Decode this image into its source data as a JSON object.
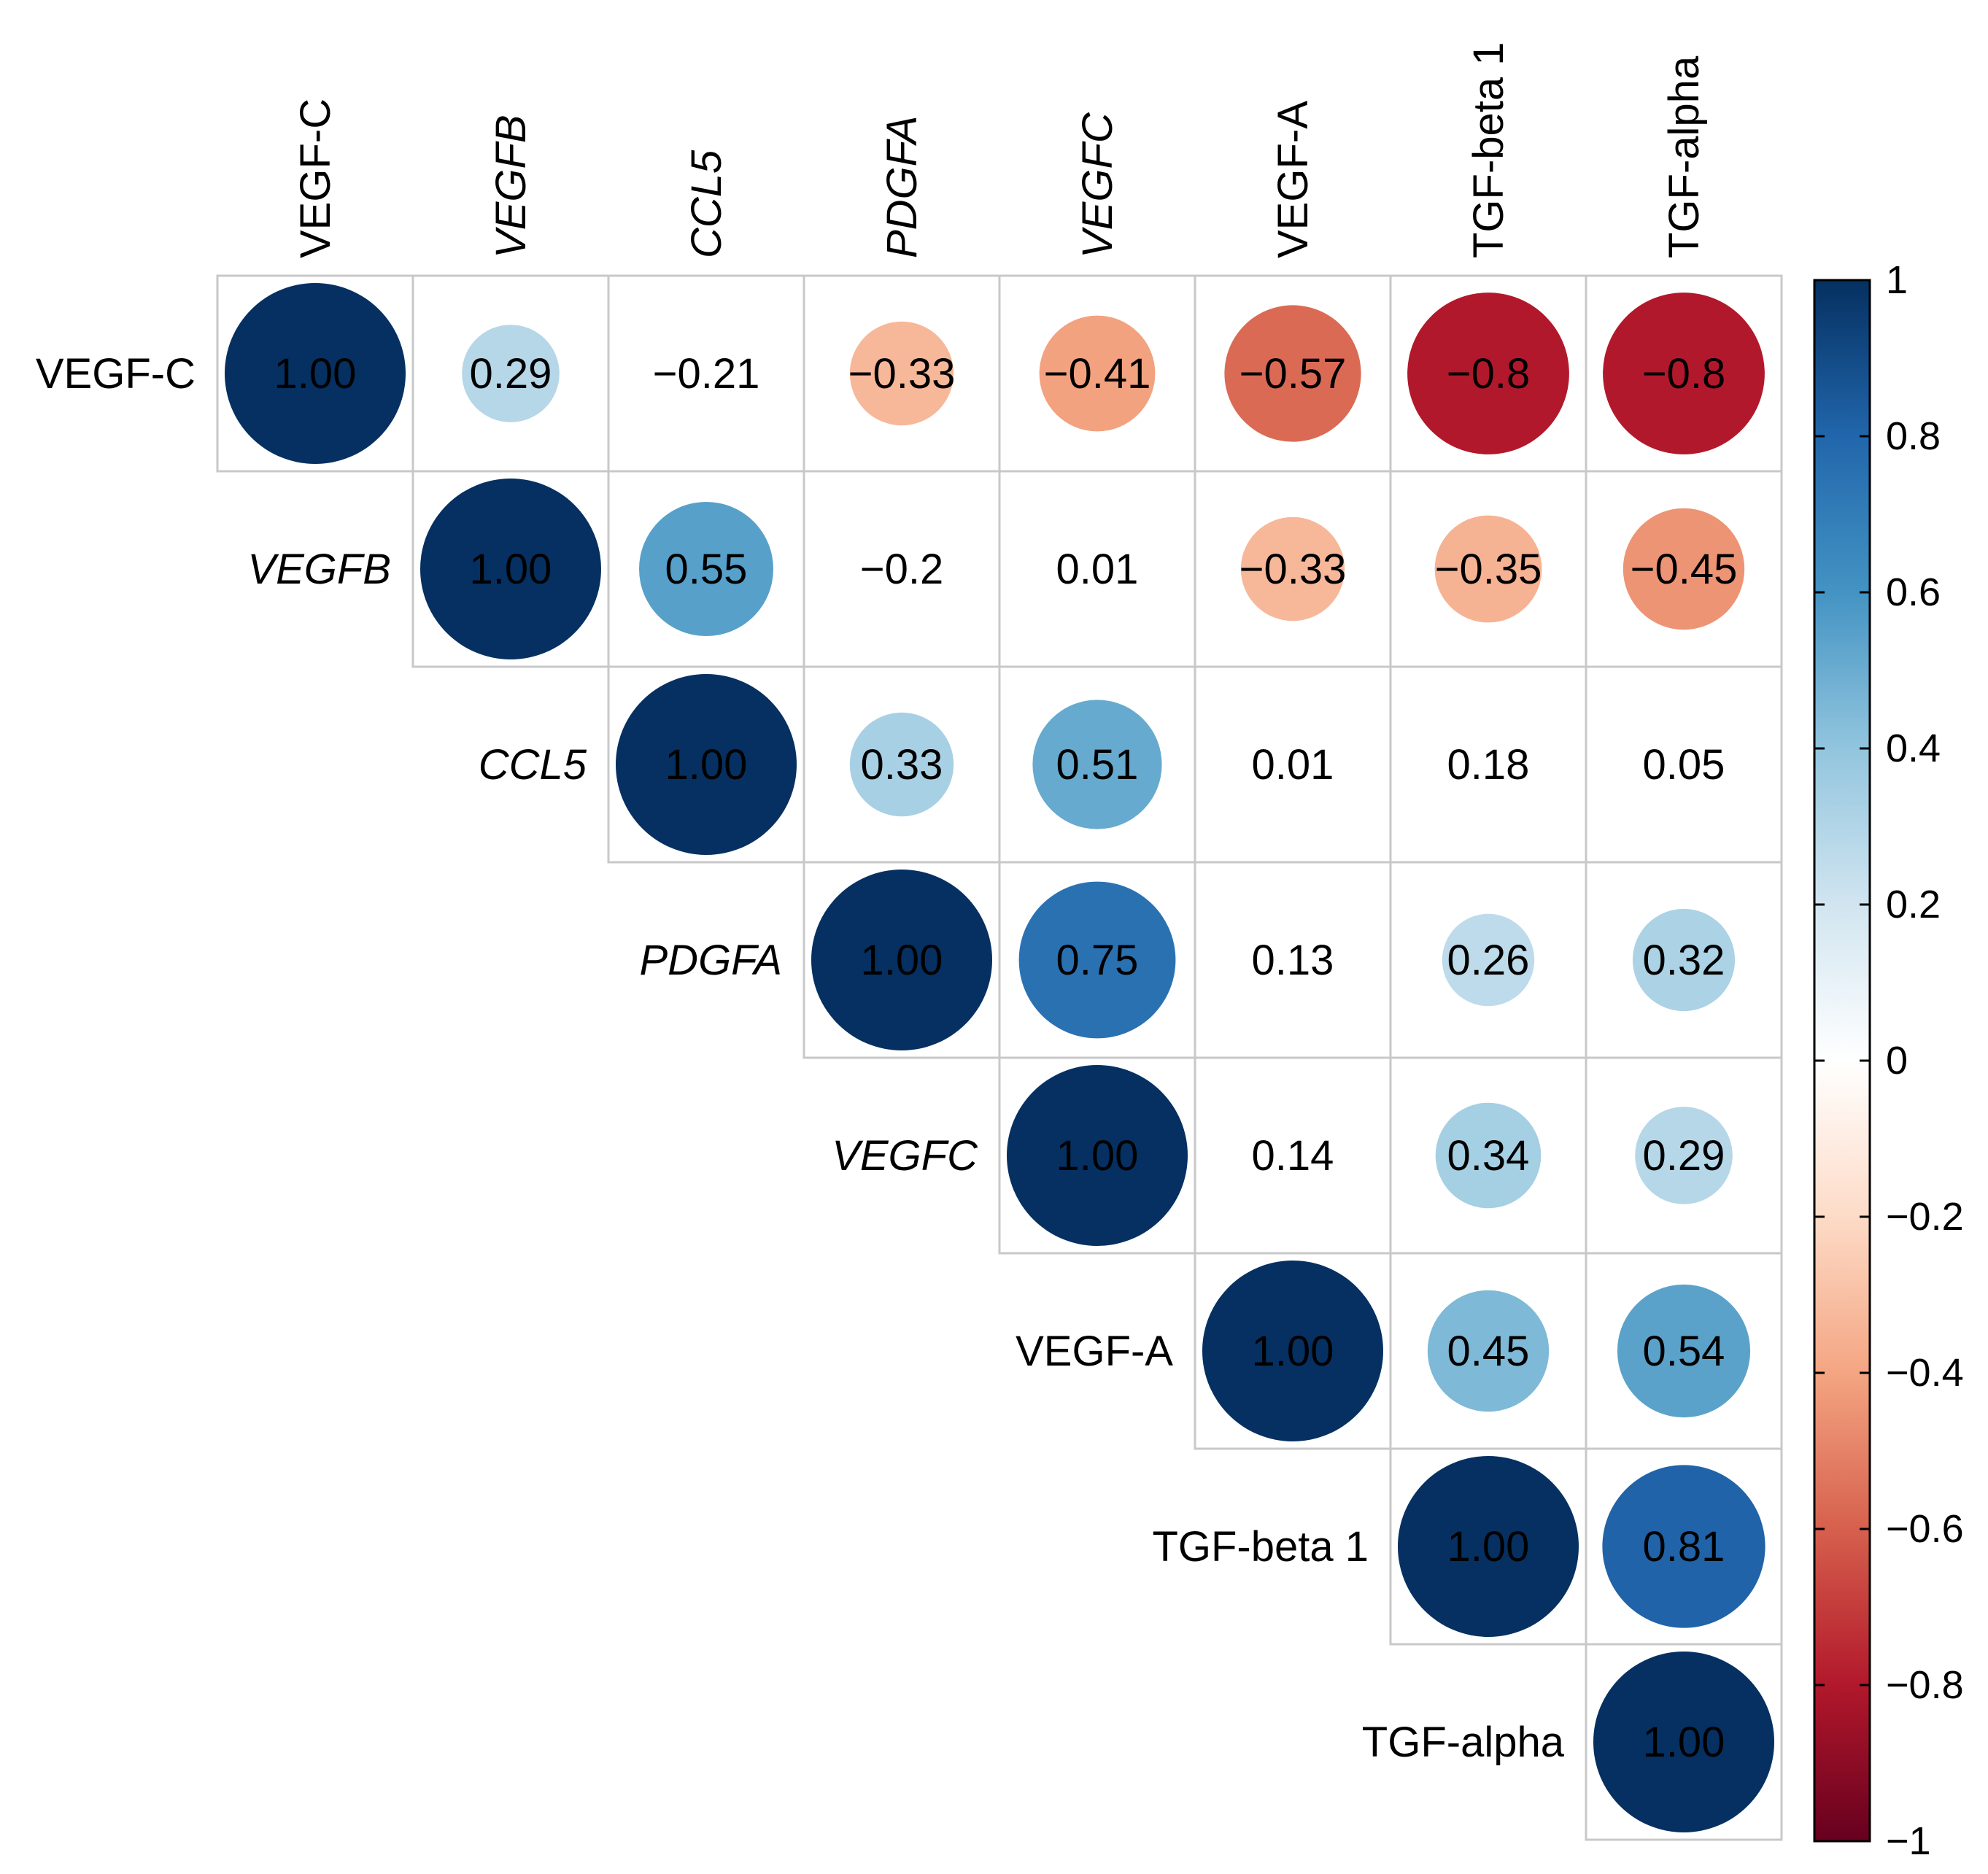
{
  "chart_data": {
    "type": "heatmap",
    "subtype": "correlation-matrix-upper-circles",
    "variables": [
      {
        "label": "VEGF-C",
        "italic": false
      },
      {
        "label": "VEGFB",
        "italic": true
      },
      {
        "label": "CCL5",
        "italic": true
      },
      {
        "label": "PDGFA",
        "italic": true
      },
      {
        "label": "VEGFC",
        "italic": true
      },
      {
        "label": "VEGF-A",
        "italic": false
      },
      {
        "label": "TGF-beta 1",
        "italic": false
      },
      {
        "label": "TGF-alpha",
        "italic": false
      }
    ],
    "matrix": [
      [
        "1.00",
        "0.29",
        "−0.21",
        "−0.33",
        "−0.41",
        "−0.57",
        "−0.8",
        "−0.8"
      ],
      [
        null,
        "1.00",
        "0.55",
        "−0.2",
        "0.01",
        "−0.33",
        "−0.35",
        "−0.45"
      ],
      [
        null,
        null,
        "1.00",
        "0.33",
        "0.51",
        "0.01",
        "0.18",
        "0.05"
      ],
      [
        null,
        null,
        null,
        "1.00",
        "0.75",
        "0.13",
        "0.26",
        "0.32"
      ],
      [
        null,
        null,
        null,
        null,
        "1.00",
        "0.14",
        "0.34",
        "0.29"
      ],
      [
        null,
        null,
        null,
        null,
        null,
        "1.00",
        "0.45",
        "0.54"
      ],
      [
        null,
        null,
        null,
        null,
        null,
        null,
        "1.00",
        "0.81"
      ],
      [
        null,
        null,
        null,
        null,
        null,
        null,
        null,
        "1.00"
      ]
    ],
    "hidden_circle_threshold": 0.25,
    "colorbar": {
      "range": [
        -1,
        1
      ],
      "ticks": [
        "1",
        "0.8",
        "0.6",
        "0.4",
        "0.2",
        "0",
        "−0.2",
        "−0.4",
        "−0.6",
        "−0.8",
        "−1"
      ],
      "tick_values": [
        1,
        0.8,
        0.6,
        0.4,
        0.2,
        0,
        -0.2,
        -0.4,
        -0.6,
        -0.8,
        -1
      ],
      "palette": [
        "#67001F",
        "#B2182B",
        "#D6604D",
        "#F4A582",
        "#FDDBC7",
        "#FFFFFF",
        "#D1E5F0",
        "#92C5DE",
        "#4393C3",
        "#2166AC",
        "#053061"
      ],
      "placement": "right"
    },
    "grid_color": "#C8C8C8",
    "title": "",
    "xlabel": "",
    "ylabel": ""
  }
}
